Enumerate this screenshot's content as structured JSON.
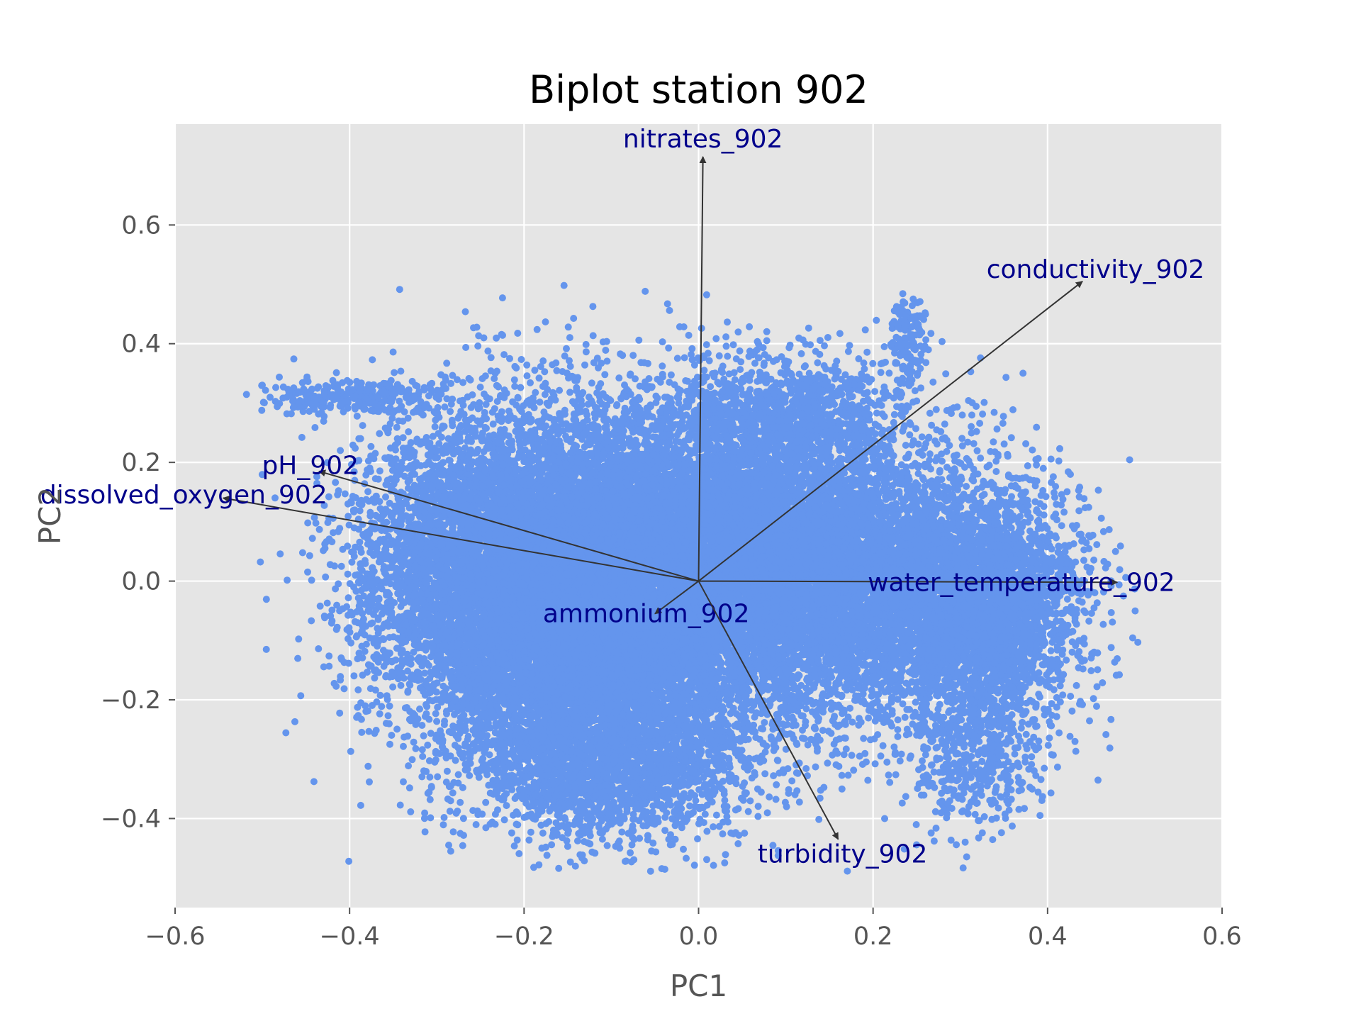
{
  "chart_data": {
    "type": "scatter",
    "title": "Biplot station 902",
    "xlabel": "PC1",
    "ylabel": "PC2",
    "xlim": [
      -0.6,
      0.6
    ],
    "ylim": [
      -0.55,
      0.77
    ],
    "xticks": [
      -0.6,
      -0.4,
      -0.2,
      0.0,
      0.2,
      0.4,
      0.6
    ],
    "yticks": [
      -0.4,
      -0.2,
      0.0,
      0.2,
      0.4,
      0.6
    ],
    "xtick_labels": [
      "−0.6",
      "−0.4",
      "−0.2",
      "0.0",
      "0.2",
      "0.4",
      "0.6"
    ],
    "ytick_labels": [
      "−0.4",
      "−0.2",
      "0.0",
      "0.2",
      "0.4",
      "0.6"
    ],
    "grid": true,
    "point_color": "#6495ED",
    "arrow_color": "#333333",
    "label_color": "#00008B",
    "background_color": "#E5E5E5",
    "loadings": [
      {
        "name": "nitrates_902",
        "x": 0.005,
        "y": 0.715,
        "label": "nitrates_902",
        "lx": 0.005,
        "ly": 0.745
      },
      {
        "name": "conductivity_902",
        "x": 0.44,
        "y": 0.505,
        "label": "conductivity_902",
        "lx": 0.455,
        "ly": 0.525
      },
      {
        "name": "pH_902",
        "x": -0.435,
        "y": 0.185,
        "label": "pH_902",
        "lx": -0.445,
        "ly": 0.195
      },
      {
        "name": "dissolved_oxygen_902",
        "x": -0.545,
        "y": 0.14,
        "label": "dissolved_oxygen_902",
        "lx": -0.59,
        "ly": 0.145
      },
      {
        "name": "water_temperature_902",
        "x": 0.48,
        "y": -0.002,
        "label": "water_temperature_902",
        "lx": 0.37,
        "ly": -0.002
      },
      {
        "name": "ammonium_902",
        "x": -0.05,
        "y": -0.055,
        "label": "ammonium_902",
        "lx": -0.06,
        "ly": -0.055
      },
      {
        "name": "turbidity_902",
        "x": 0.16,
        "y": -0.435,
        "label": "turbidity_902",
        "lx": 0.165,
        "ly": -0.46
      }
    ]
  }
}
